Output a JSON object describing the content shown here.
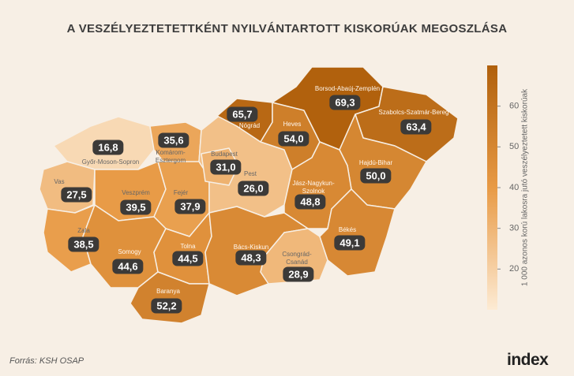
{
  "chart_data": {
    "type": "choropleth",
    "title": "A VESZÉLYEZTETETTKÉNT NYILVÁNTARTOTT KISKORÚAK MEGOSZLÁSA",
    "categories": [
      "Győr-Moson-Sopron",
      "Komárom-Esztergom",
      "Vas",
      "Veszprém",
      "Fejér",
      "Pest",
      "Budapest",
      "Nógrád",
      "Heves",
      "Borsod-Abaúj-Zemplén",
      "Szabolcs-Szatmár-Bereg",
      "Hajdú-Bihar",
      "Jász-Nagykun-Szolnok",
      "Zala",
      "Somogy",
      "Tolna",
      "Bács-Kiskun",
      "Csongrád-Csanád",
      "Békés",
      "Baranya"
    ],
    "values": [
      16.8,
      35.6,
      27.5,
      39.5,
      37.9,
      26.0,
      31.0,
      65.7,
      54.0,
      69.3,
      63.4,
      50.0,
      48.8,
      38.5,
      44.6,
      44.5,
      48.3,
      28.9,
      49.1,
      52.2
    ],
    "value_labels": [
      "16,8",
      "35,6",
      "27,5",
      "39,5",
      "37,9",
      "26,0",
      "31,0",
      "65,7",
      "54,0",
      "69,3",
      "63,4",
      "50,0",
      "48,8",
      "38,5",
      "44,6",
      "44,5",
      "48,3",
      "28,9",
      "49,1",
      "52,2"
    ],
    "colorscale": [
      "#fdebd4",
      "#e89a45",
      "#b0600c"
    ],
    "colorbar_label": "1 000 azonos korú lakosra jutó veszélyeztetett kiskorúak",
    "ylim": [
      10,
      70
    ],
    "yticks": [
      20,
      30,
      40,
      50,
      60
    ]
  },
  "source": "Forrás: KSH OSAP",
  "logo": "index"
}
